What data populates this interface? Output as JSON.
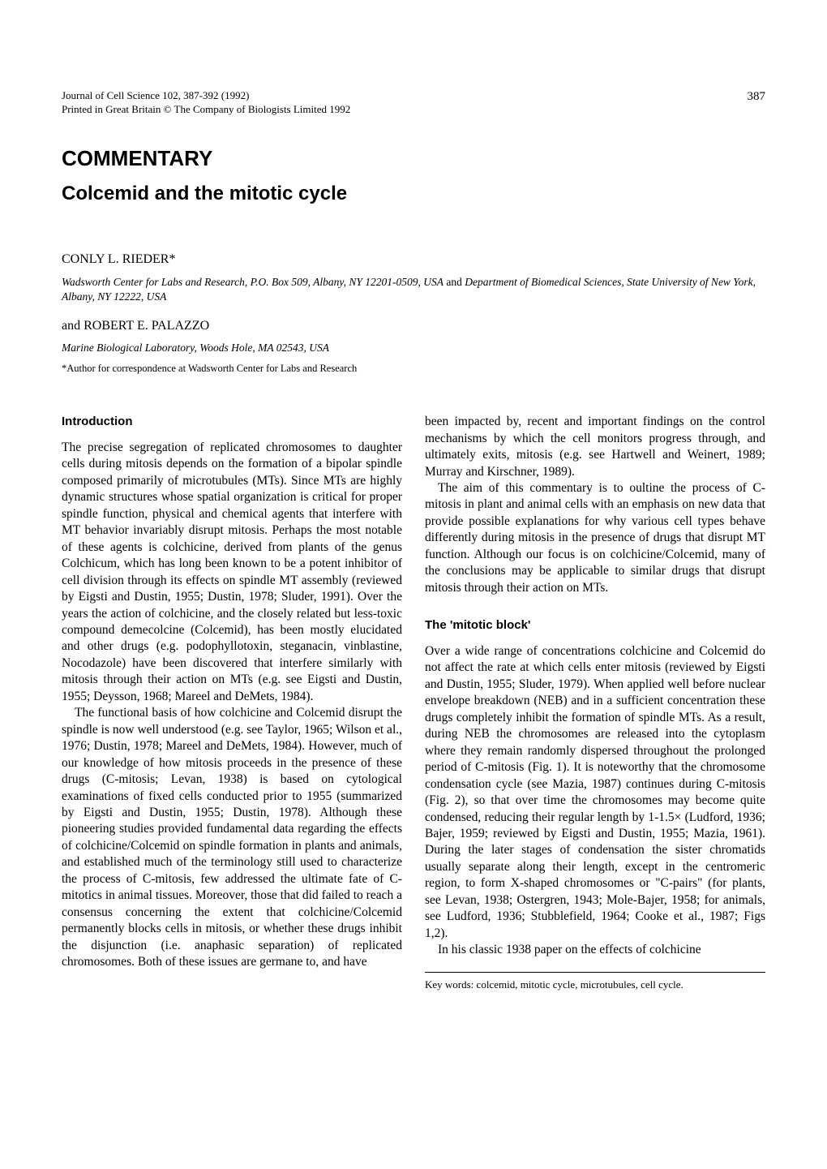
{
  "journal": {
    "line1": "Journal of Cell Science 102, 387-392 (1992)",
    "line2": "Printed in Great Britain © The Company of Biologists Limited 1992",
    "page_number": "387"
  },
  "article": {
    "type": "COMMENTARY",
    "title": "Colcemid and the mitotic cycle"
  },
  "authors": {
    "author1": "CONLY L. RIEDER*",
    "aff1_a": "Wadsworth Center for Labs and Research, P.O. Box 509, Albany, NY 12201-0509, USA",
    "aff1_join": " and ",
    "aff1_b": "Department of Biomedical Sciences, State University of New York, Albany, NY 12222, USA",
    "and": "and ROBERT E. PALAZZO",
    "aff2": "Marine Biological Laboratory, Woods Hole, MA 02543, USA",
    "corr": "*Author for correspondence at Wadsworth Center for Labs and Research"
  },
  "sections": {
    "intro_head": "Introduction",
    "intro_p1": "The precise segregation of replicated chromosomes to daughter cells during mitosis depends on the formation of a bipolar spindle composed primarily of microtubules (MTs). Since MTs are highly dynamic structures whose spatial organization is critical for proper spindle function, physical and chemical agents that interfere with MT behavior invariably disrupt mitosis. Perhaps the most notable of these agents is colchicine, derived from plants of the genus Colchicum, which has long been known to be a potent inhibitor of cell division through its effects on spindle MT assembly (reviewed by Eigsti and Dustin, 1955; Dustin, 1978; Sluder, 1991). Over the years the action of colchicine, and the closely related but less-toxic compound demecolcine (Colcemid), has been mostly elucidated and other drugs (e.g. podophyllotoxin, steganacin, vinblastine, Nocodazole) have been discovered that interfere similarly with mitosis through their action on MTs (e.g. see Eigsti and Dustin, 1955; Deysson, 1968; Mareel and DeMets, 1984).",
    "intro_p2": "The functional basis of how colchicine and Colcemid disrupt the spindle is now well understood (e.g. see Taylor, 1965; Wilson et al., 1976; Dustin, 1978; Mareel and DeMets, 1984). However, much of our knowledge of how mitosis proceeds in the presence of these drugs (C-mitosis; Levan, 1938) is based on cytological examinations of fixed cells conducted prior to 1955 (summarized by Eigsti and Dustin, 1955; Dustin, 1978). Although these pioneering studies provided fundamental data regarding the effects of colchicine/Colcemid on spindle formation in plants and animals, and established much of the terminology still used to characterize the process of C-mitosis, few addressed the ultimate fate of C-mitotics in animal tissues. Moreover, those that did failed to reach a consensus concerning the extent that colchicine/Colcemid permanently blocks cells in mitosis, or whether these drugs inhibit the disjunction (i.e. anaphasic separation) of replicated chromosomes. Both of these issues are germane to, and have",
    "col2_p1": "been impacted by, recent and important findings on the control mechanisms by which the cell monitors progress through, and ultimately exits, mitosis (e.g. see Hartwell and Weinert, 1989; Murray and Kirschner, 1989).",
    "col2_p2": "The aim of this commentary is to oultine the process of C-mitosis in plant and animal cells with an emphasis on new data that provide possible explanations for why various cell types behave differently during mitosis in the presence of drugs that disrupt MT function. Although our focus is on colchicine/Colcemid, many of the conclusions may be applicable to similar drugs that disrupt mitosis through their action on MTs.",
    "block_head": "The 'mitotic block'",
    "block_p1": "Over a wide range of concentrations colchicine and Colcemid do not affect the rate at which cells enter mitosis (reviewed by Eigsti and Dustin, 1955; Sluder, 1979). When applied well before nuclear envelope breakdown (NEB) and in a sufficient concentration these drugs completely inhibit the formation of spindle MTs. As a result, during NEB the chromosomes are released into the cytoplasm where they remain randomly dispersed throughout the prolonged period of C-mitosis (Fig. 1). It is noteworthy that the chromosome condensation cycle (see Mazia, 1987) continues during C-mitosis (Fig. 2), so that over time the chromosomes may become quite condensed, reducing their regular length by 1-1.5× (Ludford, 1936; Bajer, 1959; reviewed by Eigsti and Dustin, 1955; Mazia, 1961). During the later stages of condensation the sister chromatids usually separate along their length, except in the centromeric region, to form X-shaped chromosomes or \"C-pairs\" (for plants, see Levan, 1938; Ostergren, 1943; Mole-Bajer, 1958; for animals, see Ludford, 1936; Stubblefield, 1964; Cooke et al., 1987; Figs 1,2).",
    "block_p2": "In his classic 1938 paper on the effects of colchicine",
    "keywords": "Key words: colcemid, mitotic cycle, microtubules, cell cycle."
  }
}
